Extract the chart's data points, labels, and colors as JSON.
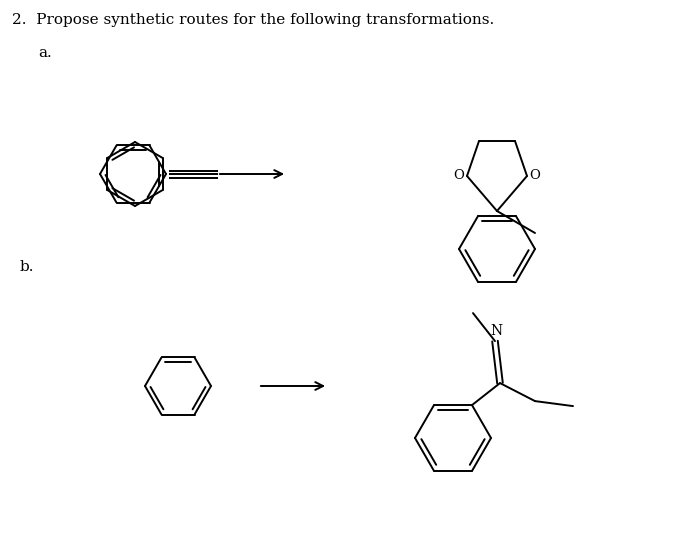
{
  "title_text": "2.  Propose synthetic routes for the following transformations.",
  "label_a": "a.",
  "label_b": "b.",
  "bg_color": "#ffffff",
  "text_color": "#000000",
  "line_color": "#000000",
  "lw": 1.4,
  "title_fontsize": 11,
  "label_fontsize": 11,
  "figw": 6.81,
  "figh": 5.56,
  "dpi": 100
}
